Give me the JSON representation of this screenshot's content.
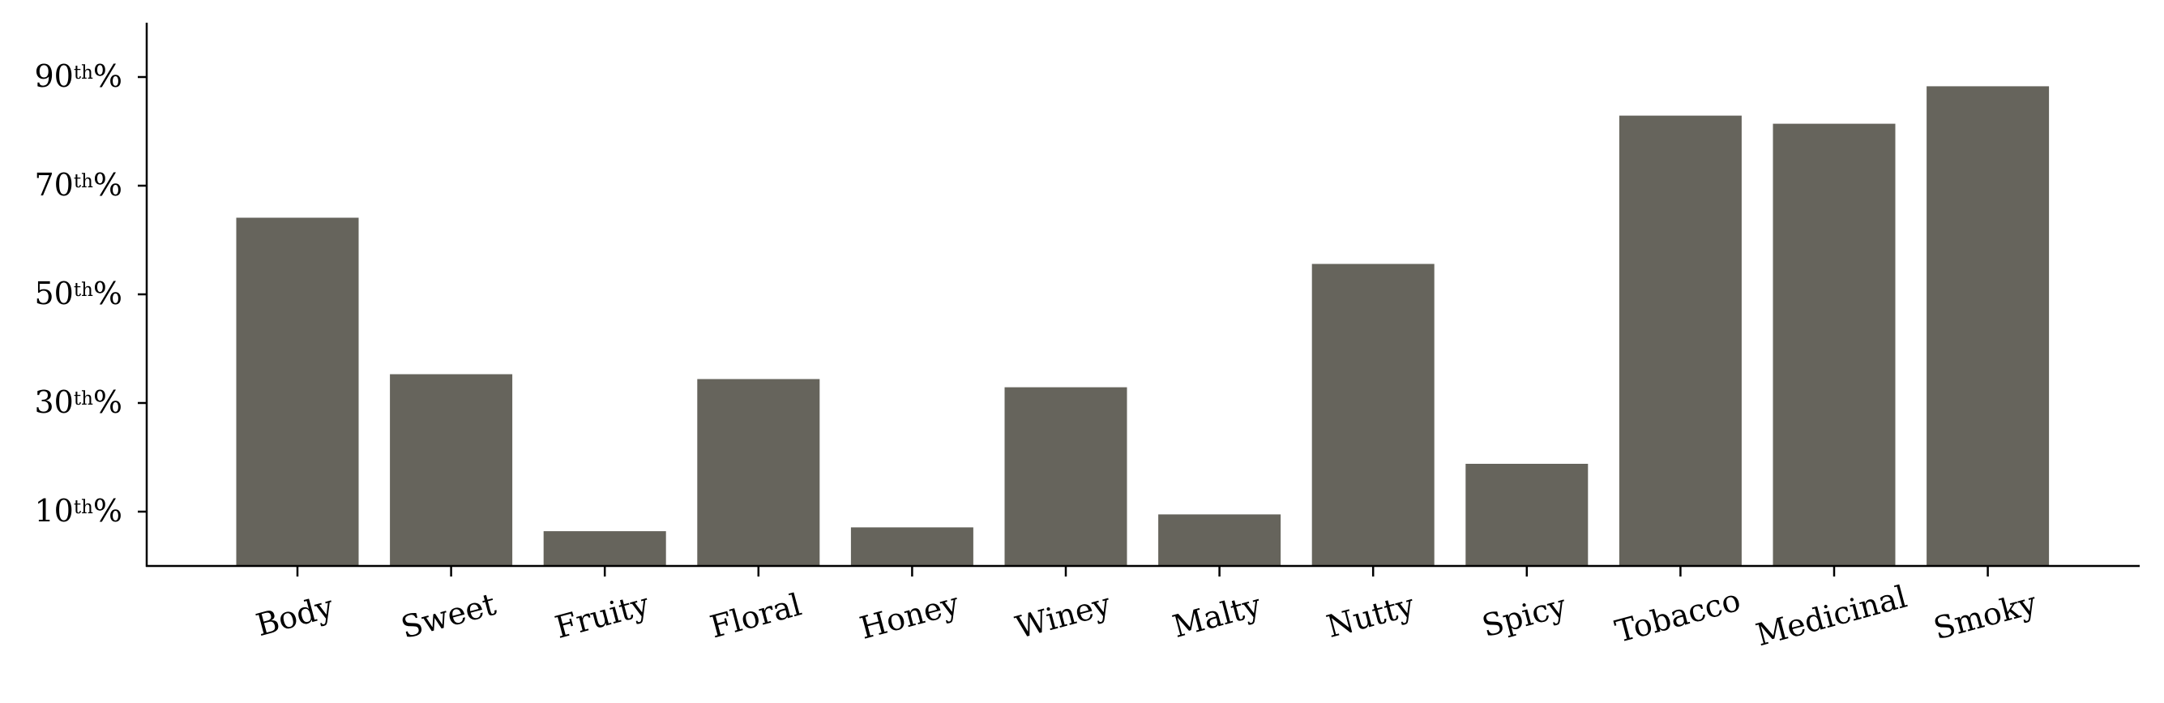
{
  "chart_data": {
    "type": "bar",
    "title": "",
    "xlabel": "",
    "ylabel": "",
    "categories": [
      "Body",
      "Sweet",
      "Fruity",
      "Floral",
      "Honey",
      "Winey",
      "Malty",
      "Nutty",
      "Spicy",
      "Tobacco",
      "Medicinal",
      "Smoky"
    ],
    "values": [
      64.1,
      35.3,
      6.4,
      34.4,
      7.1,
      32.9,
      9.5,
      55.6,
      18.8,
      82.9,
      81.4,
      88.3
    ],
    "ylim": [
      0,
      100
    ],
    "yticks": [
      {
        "value": 10,
        "num": "10",
        "sup": "th",
        "suffix": "%"
      },
      {
        "value": 30,
        "num": "30",
        "sup": "th",
        "suffix": "%"
      },
      {
        "value": 50,
        "num": "50",
        "sup": "th",
        "suffix": "%"
      },
      {
        "value": 70,
        "num": "70",
        "sup": "th",
        "suffix": "%"
      },
      {
        "value": 90,
        "num": "90",
        "sup": "th",
        "suffix": "%"
      }
    ],
    "grid": false,
    "bar_color": "#66645c",
    "axis_color": "#000000"
  }
}
